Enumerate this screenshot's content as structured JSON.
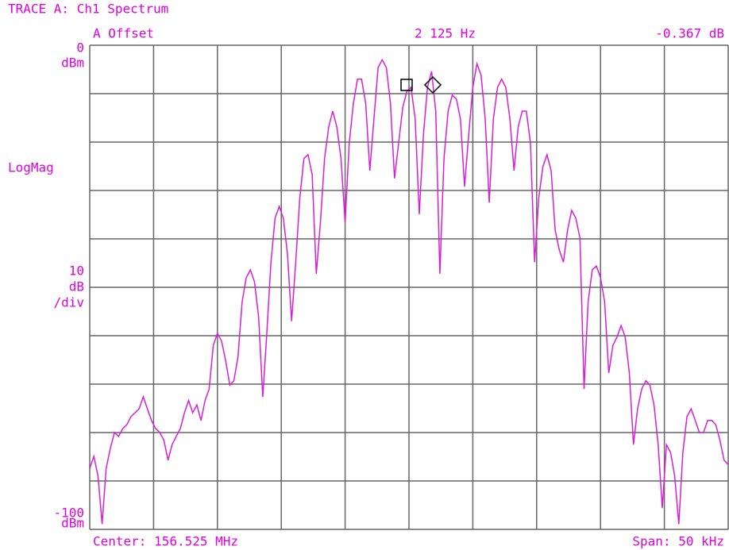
{
  "chart_data": {
    "type": "line",
    "title": "TRACE A: Ch1 Spectrum",
    "marker_label": "A Offset",
    "marker_freq": "2 125 Hz",
    "marker_amp": "-0.367 dB",
    "ylabel": "LogMag",
    "y_unit": "dBm",
    "scale": 10,
    "scale_unit": "dB",
    "scale_per": "/div",
    "center": "Center: 156.525 MHz",
    "span": "Span: 50 kHz",
    "ylim": [
      -100,
      0
    ],
    "yticks": [
      0,
      -100
    ],
    "grid": true,
    "series": [
      {
        "color": "#d81ed8",
        "values": [
          -87.4,
          -84.9,
          -89.0,
          -98.9,
          -87.4,
          -83.3,
          -80.0,
          -80.8,
          -79.2,
          -78.4,
          -76.7,
          -75.9,
          -75.1,
          -72.6,
          -75.1,
          -77.5,
          -79.2,
          -80.0,
          -81.6,
          -85.7,
          -82.5,
          -80.8,
          -79.2,
          -75.9,
          -73.4,
          -75.9,
          -74.3,
          -77.5,
          -73.4,
          -71.0,
          -62.0,
          -59.5,
          -61.1,
          -65.2,
          -70.2,
          -69.3,
          -64.4,
          -53.0,
          -48.0,
          -46.4,
          -48.9,
          -56.2,
          -72.6,
          -59.5,
          -44.8,
          -35.7,
          -33.3,
          -35.7,
          -43.1,
          -57.0,
          -44.8,
          -31.6,
          -23.4,
          -22.6,
          -26.7,
          -47.2,
          -36.6,
          -23.4,
          -16.9,
          -13.6,
          -16.9,
          -23.4,
          -36.6,
          -20.2,
          -12.0,
          -7.0,
          -7.0,
          -12.0,
          -25.9,
          -15.2,
          -4.6,
          -3.0,
          -4.6,
          -12.0,
          -27.5,
          -20.2,
          -12.8,
          -9.5,
          -8.7,
          -15.2,
          -34.9,
          -18.5,
          -8.7,
          -5.4,
          -13.6,
          -47.2,
          -23.4,
          -13.6,
          -10.3,
          -11.1,
          -15.2,
          -29.2,
          -18.5,
          -8.7,
          -3.8,
          -6.2,
          -15.2,
          -32.5,
          -15.2,
          -8.7,
          -7.0,
          -8.7,
          -15.2,
          -25.9,
          -16.9,
          -13.6,
          -13.6,
          -20.2,
          -44.8,
          -31.6,
          -25.1,
          -22.6,
          -25.9,
          -38.2,
          -42.3,
          -44.8,
          -38.2,
          -34.1,
          -35.7,
          -39.8,
          -71.0,
          -53.0,
          -46.4,
          -45.6,
          -48.0,
          -53.0,
          -67.7,
          -62.0,
          -60.3,
          -57.9,
          -60.3,
          -67.7,
          -82.5,
          -75.1,
          -71.0,
          -69.3,
          -70.2,
          -74.3,
          -82.5,
          -95.6,
          -82.5,
          -84.1,
          -89.0,
          -98.9,
          -84.1,
          -76.7,
          -75.1,
          -77.5,
          -80.0,
          -80.0,
          -77.5,
          -77.5,
          -78.4,
          -81.6,
          -85.7,
          -86.6
        ]
      }
    ]
  }
}
